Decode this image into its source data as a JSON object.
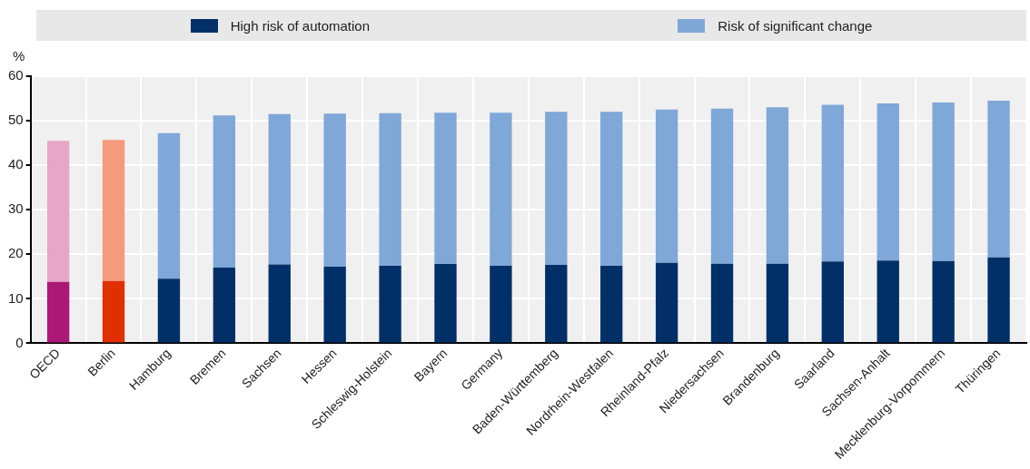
{
  "chart_data": {
    "type": "bar",
    "stacked": true,
    "ylabel": "%",
    "legend": "top",
    "grid": true,
    "categories": [
      "OECD",
      "Berlin",
      "Hamburg",
      "Bremen",
      "Sachsen",
      "Hessen",
      "Schleswig-Holstein",
      "Bayern",
      "Germany",
      "Baden-Württemberg",
      "Nordrhein-Westfalen",
      "Rheinland-Pfalz",
      "Niedersachsen",
      "Brandenburg",
      "Saarland",
      "Sachsen-Anhalt",
      "Mecklenburg-Vorpommern",
      "Thüringen"
    ],
    "ylim": [
      0,
      60
    ],
    "yticks": [
      0,
      10,
      20,
      30,
      40,
      50,
      60
    ],
    "series": [
      {
        "name": "High risk of automation",
        "color": "#003067",
        "colors": [
          "#ac1878",
          "#e03000",
          "#003067",
          "#003067",
          "#003067",
          "#003067",
          "#003067",
          "#003067",
          "#003067",
          "#003067",
          "#003067",
          "#003067",
          "#003067",
          "#003067",
          "#003067",
          "#003067",
          "#003067",
          "#003067"
        ],
        "values": [
          13.8,
          14.0,
          14.5,
          17.0,
          17.7,
          17.2,
          17.4,
          17.8,
          17.4,
          17.6,
          17.4,
          18.1,
          17.9,
          17.9,
          18.4,
          18.6,
          18.5,
          19.3
        ]
      },
      {
        "name": "Risk of significant change",
        "color": "#7fa7d8",
        "colors": [
          "#e8a5c8",
          "#f59a7c",
          "#7fa7d8",
          "#7fa7d8",
          "#7fa7d8",
          "#7fa7d8",
          "#7fa7d8",
          "#7fa7d8",
          "#7fa7d8",
          "#7fa7d8",
          "#7fa7d8",
          "#7fa7d8",
          "#7fa7d8",
          "#7fa7d8",
          "#7fa7d8",
          "#7fa7d8",
          "#7fa7d8",
          "#7fa7d8"
        ],
        "values": [
          31.7,
          31.7,
          32.7,
          34.2,
          33.8,
          34.4,
          34.3,
          34.0,
          34.4,
          34.4,
          34.6,
          34.4,
          34.8,
          35.1,
          35.2,
          35.3,
          35.6,
          35.2
        ]
      }
    ]
  }
}
